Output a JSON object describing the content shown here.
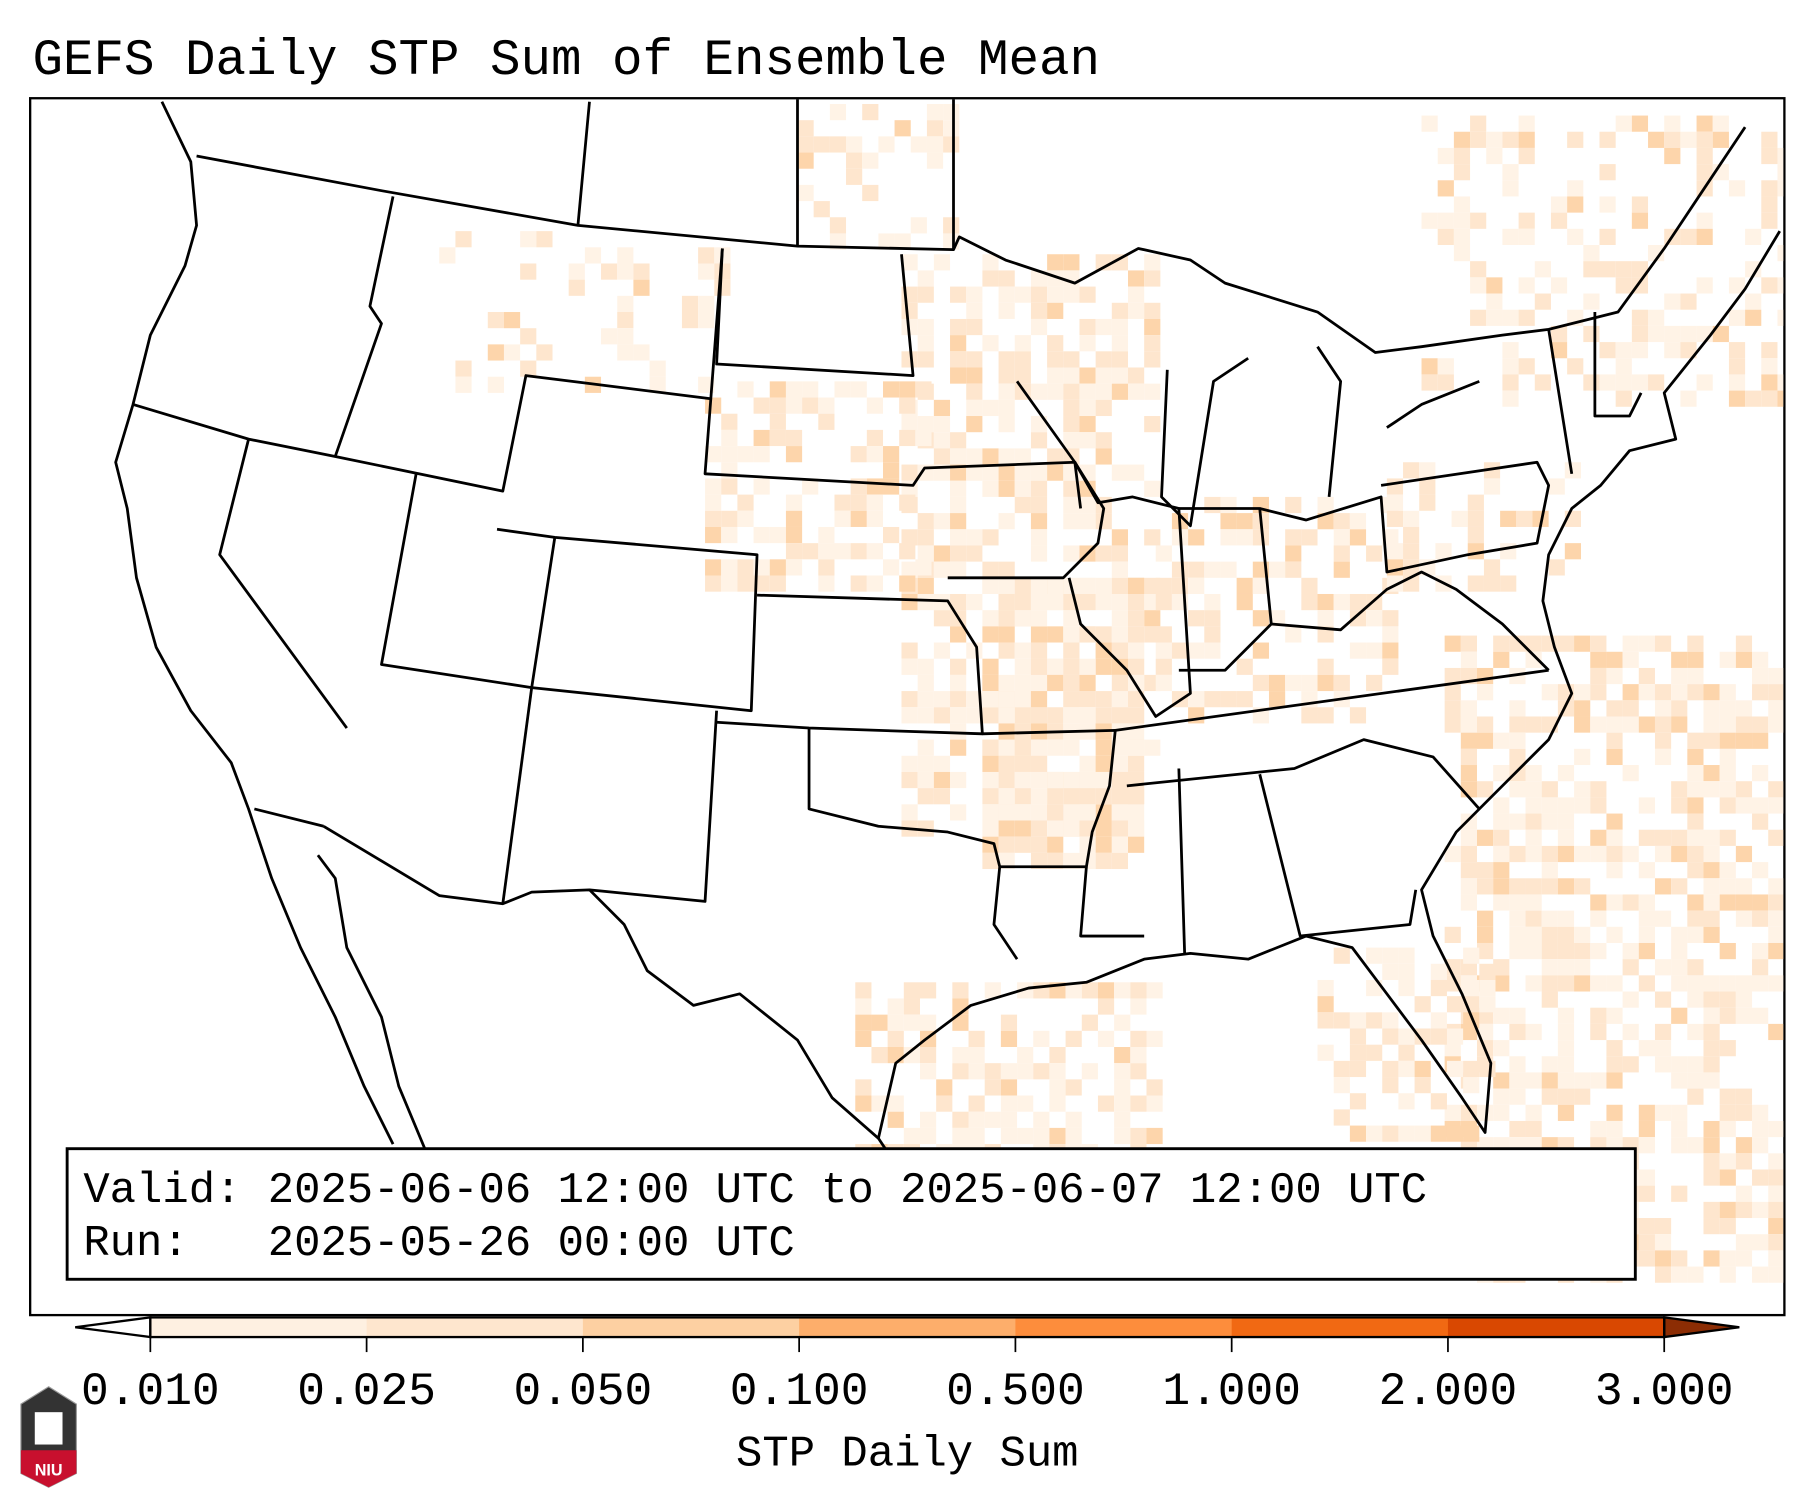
{
  "title": "GEFS Daily STP Sum of Ensemble Mean",
  "info_box": {
    "valid_line": "Valid: 2025-06-06 12:00 UTC to 2025-06-07 12:00 UTC",
    "run_line": "Run:   2025-05-26 00:00 UTC"
  },
  "colorbar": {
    "label": "STP Daily Sum",
    "ticks": [
      "0.010",
      "0.025",
      "0.050",
      "0.100",
      "0.500",
      "1.000",
      "2.000",
      "3.000"
    ],
    "colors": [
      "#fef0e1",
      "#fee6ce",
      "#fdd0a2",
      "#fdae6b",
      "#fd8d3c",
      "#f16913",
      "#d94801"
    ],
    "under_color": "#ffffff",
    "over_color": "#8c2d04"
  },
  "logo": {
    "text": "NIU"
  },
  "shading_colors": {
    "light": "#fff3e6",
    "mid": "#fee6ce",
    "strong": "#fdd5ab"
  }
}
